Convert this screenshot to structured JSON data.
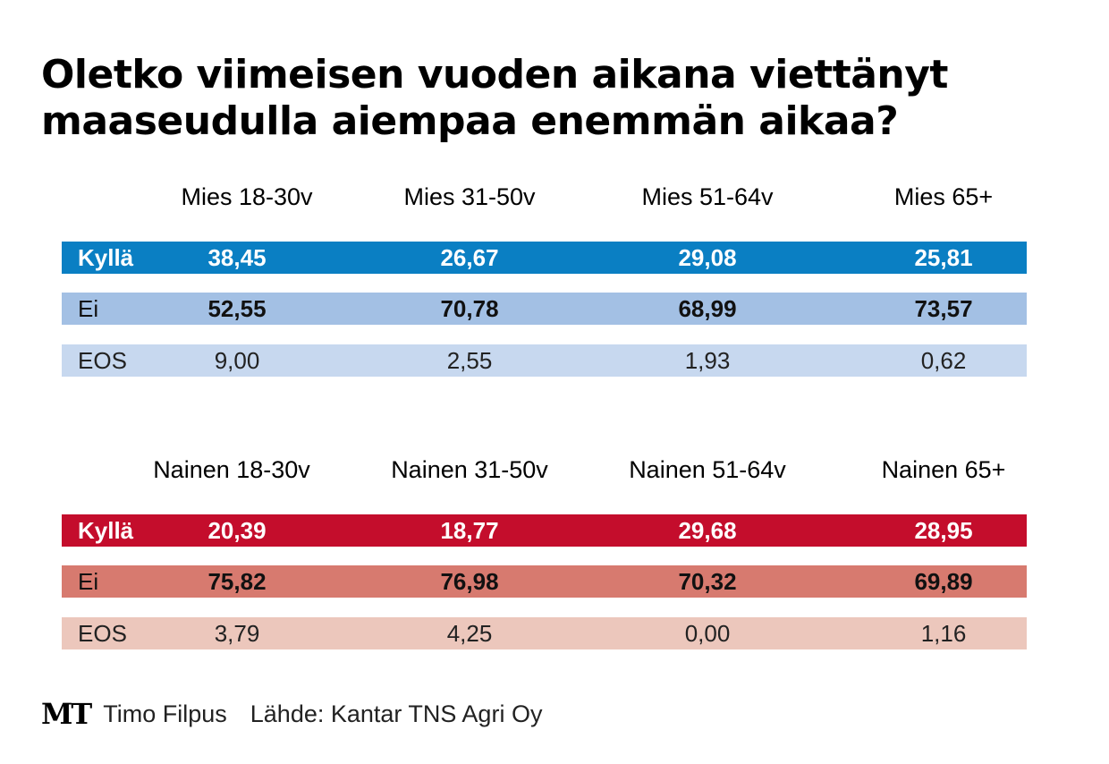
{
  "title": "Oletko viimeisen vuoden aikana viettänyt maaseudulla aiempaa enemmän aikaa?",
  "footer": {
    "logo": "MT",
    "author": "Timo Filpus",
    "source": "Lähde: Kantar TNS Agri Oy"
  },
  "colors": {
    "men_yes": "#0a7fc3",
    "men_no": "#a3c0e4",
    "men_eos": "#c7d8ef",
    "women_yes": "#c40d2c",
    "women_no": "#d77a6f",
    "women_eos": "#ecc7bc"
  },
  "chart_data": [
    {
      "type": "table",
      "title": "Mies",
      "categories": [
        "Mies 18-30v",
        "Mies 31-50v",
        "Mies 51-64v",
        "Mies 65+"
      ],
      "series": [
        {
          "name": "Kyllä",
          "values": [
            "38,45",
            "26,67",
            "29,08",
            "25,81"
          ]
        },
        {
          "name": "Ei",
          "values": [
            "52,55",
            "70,78",
            "68,99",
            "73,57"
          ]
        },
        {
          "name": "EOS",
          "values": [
            "9,00",
            "2,55",
            "1,93",
            "0,62"
          ]
        }
      ]
    },
    {
      "type": "table",
      "title": "Nainen",
      "categories": [
        "Nainen 18-30v",
        "Nainen 31-50v",
        "Nainen 51-64v",
        "Nainen 65+"
      ],
      "series": [
        {
          "name": "Kyllä",
          "values": [
            "20,39",
            "18,77",
            "29,68",
            "28,95"
          ]
        },
        {
          "name": "Ei",
          "values": [
            "75,82",
            "76,98",
            "70,32",
            "69,89"
          ]
        },
        {
          "name": "EOS",
          "values": [
            "3,79",
            "4,25",
            "0,00",
            "1,16"
          ]
        }
      ]
    }
  ]
}
